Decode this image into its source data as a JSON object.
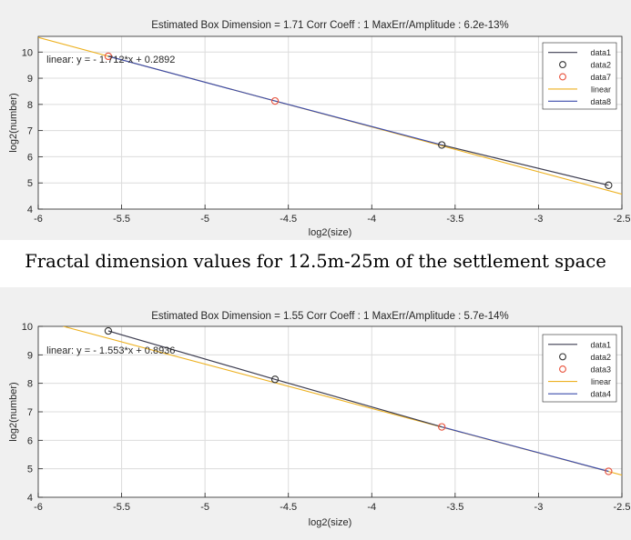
{
  "caption": "Fractal dimension values for 12.5m-25m of the settlement space",
  "colors": {
    "background": "#f0f0f0",
    "axes_background": "#ffffff",
    "grid": "#dcdcdc",
    "data_line": "#3d3d50",
    "black_marker": "#333333",
    "red_marker": "#e8503a",
    "fit_line": "#edb120",
    "data_blue": "#3c4cab"
  },
  "chart_data": [
    {
      "type": "line",
      "title": "Estimated Box Dimension =  1.71    Corr Coeff : 1    MaxErr/Amplitude : 6.2e-13%",
      "xlabel": "log2(size)",
      "ylabel": "log2(number)",
      "xlim": [
        -6,
        -2.5
      ],
      "ylim": [
        4,
        10.6
      ],
      "xticks": [
        -6,
        -5.5,
        -5,
        -4.5,
        -4,
        -3.5,
        -3,
        -2.5
      ],
      "xtick_labels": [
        "-6",
        "-5.5",
        "-5",
        "-4.5",
        "-4",
        "-3.5",
        "-3",
        "-2.5"
      ],
      "yticks": [
        4,
        5,
        6,
        7,
        8,
        9,
        10
      ],
      "ytick_labels": [
        "4",
        "5",
        "6",
        "7",
        "8",
        "9",
        "10"
      ],
      "grid": true,
      "legend_position": "top-right",
      "annotation": {
        "text": "linear:  y = - 1.712*x + 0.2892",
        "x": -5.95,
        "y": 9.6
      },
      "series": [
        {
          "name": "data1",
          "style": "line",
          "color": "#3d3d50",
          "x": [
            -3.58,
            -2.58
          ],
          "y": [
            6.45,
            4.91
          ]
        },
        {
          "name": "data2",
          "style": "marker",
          "color": "#333333",
          "x": [
            -3.58,
            -2.58
          ],
          "y": [
            6.45,
            4.91
          ]
        },
        {
          "name": "data7",
          "style": "marker",
          "color": "#e8503a",
          "x": [
            -5.58,
            -4.58
          ],
          "y": [
            9.84,
            8.13
          ]
        },
        {
          "name": "linear",
          "style": "line",
          "color": "#edb120",
          "x": [
            -6,
            -2.5
          ],
          "y": [
            10.56,
            4.57
          ]
        },
        {
          "name": "data8",
          "style": "line",
          "color": "#3c4cab",
          "x": [
            -5.58,
            -4.58,
            -3.58
          ],
          "y": [
            9.84,
            8.13,
            6.45
          ]
        }
      ]
    },
    {
      "type": "line",
      "title": "Estimated Box Dimension =  1.55    Corr Coeff : 1    MaxErr/Amplitude : 5.7e-14%",
      "xlabel": "log2(size)",
      "ylabel": "log2(number)",
      "xlim": [
        -6,
        -2.5
      ],
      "ylim": [
        4,
        10
      ],
      "xticks": [
        -6,
        -5.5,
        -5,
        -4.5,
        -4,
        -3.5,
        -3,
        -2.5
      ],
      "xtick_labels": [
        "-6",
        "-5.5",
        "-5",
        "-4.5",
        "-4",
        "-3.5",
        "-3",
        "-2.5"
      ],
      "yticks": [
        4,
        5,
        6,
        7,
        8,
        9,
        10
      ],
      "ytick_labels": [
        "4",
        "5",
        "6",
        "7",
        "8",
        "9",
        "10"
      ],
      "grid": true,
      "legend_position": "top-right",
      "annotation": {
        "text": "linear:  y = - 1.553*x + 0.8936",
        "x": -5.95,
        "y": 9.05
      },
      "series": [
        {
          "name": "data1",
          "style": "line",
          "color": "#3d3d50",
          "x": [
            -5.58,
            -4.58,
            -3.58
          ],
          "y": [
            9.84,
            8.14,
            6.47
          ]
        },
        {
          "name": "data2",
          "style": "marker",
          "color": "#333333",
          "x": [
            -5.58,
            -4.58
          ],
          "y": [
            9.84,
            8.14
          ]
        },
        {
          "name": "data3",
          "style": "marker",
          "color": "#e8503a",
          "x": [
            -3.58,
            -2.58
          ],
          "y": [
            6.47,
            4.91
          ]
        },
        {
          "name": "linear",
          "style": "line",
          "color": "#edb120",
          "x": [
            -5.85,
            -2.5
          ],
          "y": [
            10.0,
            4.78
          ]
        },
        {
          "name": "data4",
          "style": "line",
          "color": "#3c4cab",
          "x": [
            -3.58,
            -2.58
          ],
          "y": [
            6.47,
            4.91
          ]
        }
      ]
    }
  ]
}
